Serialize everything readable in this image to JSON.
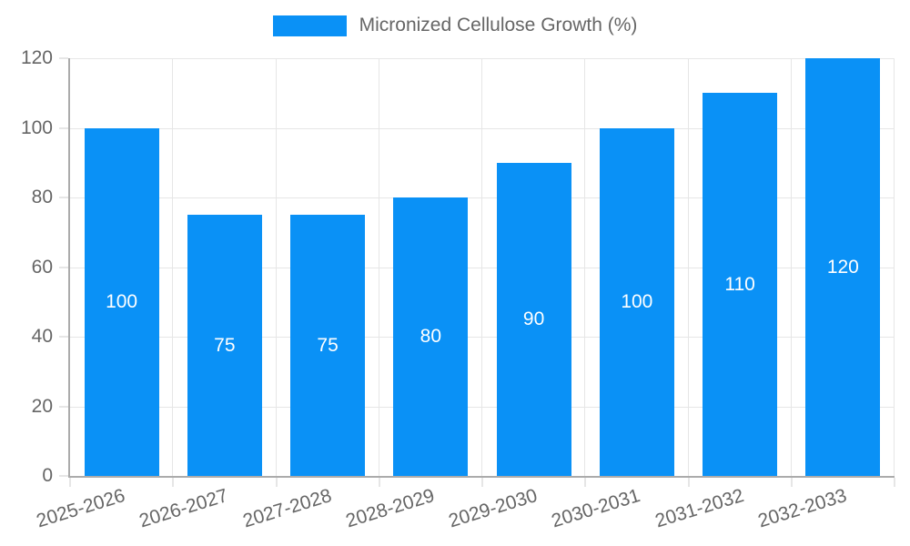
{
  "chart_data": {
    "type": "bar",
    "title": "Micronized Cellulose Growth (%)",
    "categories": [
      "2025-2026",
      "2026-2027",
      "2027-2028",
      "2028-2029",
      "2029-2030",
      "2030-2031",
      "2031-2032",
      "2032-2033"
    ],
    "values": [
      100,
      75,
      75,
      80,
      90,
      100,
      110,
      120
    ],
    "xlabel": "",
    "ylabel": "",
    "ylim": [
      0,
      120
    ],
    "yticks": [
      0,
      20,
      40,
      60,
      80,
      100,
      120
    ],
    "grid": true,
    "legend_position": "top",
    "value_labels": "centered-white-inside-bars",
    "colors": {
      "bar": "#0a91f6",
      "grid": "#e6e6e6",
      "axis": "#ababab",
      "tick_text": "#666666",
      "value_text": "#ffffff"
    }
  }
}
